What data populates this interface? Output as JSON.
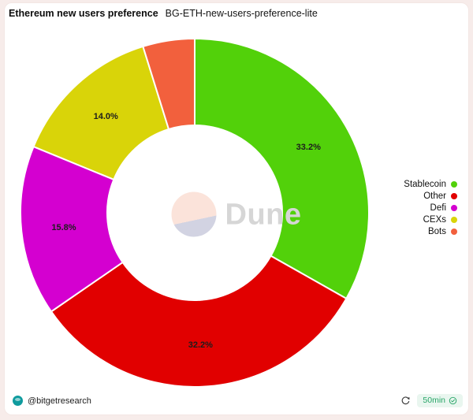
{
  "watermark": "Dune",
  "chart_data": {
    "type": "pie",
    "title": "Ethereum new users preference",
    "subtitle": "BG-ETH-new-users-preference-lite",
    "donut": true,
    "start_angle_deg": 0,
    "direction": "clockwise",
    "legend_position": "right",
    "series": [
      {
        "name": "Stablecoin",
        "value": 33.2,
        "label": "33.2%",
        "color": "#52d10a"
      },
      {
        "name": "Other",
        "value": 32.2,
        "label": "32.2%",
        "color": "#e10000"
      },
      {
        "name": "Defi",
        "value": 15.8,
        "label": "15.8%",
        "color": "#d400d0"
      },
      {
        "name": "CEXs",
        "value": 14.0,
        "label": "14.0%",
        "color": "#d9d409"
      },
      {
        "name": "Bots",
        "value": 4.8,
        "label": "",
        "color": "#f2603d"
      }
    ]
  },
  "footer": {
    "handle": "@bitgetresearch",
    "refresh_interval": "50min"
  },
  "colors": {
    "frame_bg": "#f7ecea",
    "badge_bg": "#e9f6ef",
    "badge_text": "#27a567",
    "avatar": "#0f9b9e",
    "refresh_icon": "#3c3c3c",
    "watermark_text": "#d6d6d6",
    "watermark_circle_top": "#fbe3da",
    "watermark_circle_bottom": "#d2d3e2"
  }
}
